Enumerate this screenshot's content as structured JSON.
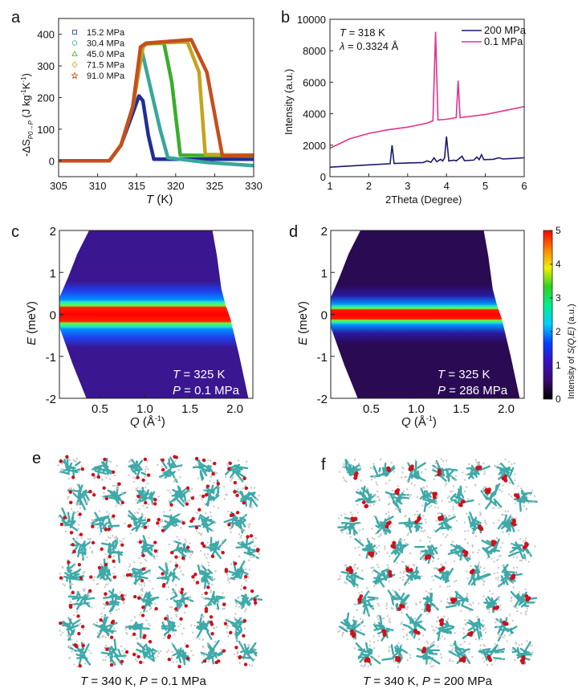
{
  "panel_labels": {
    "a": "a",
    "b": "b",
    "c": "c",
    "d": "d",
    "e": "e",
    "f": "f"
  },
  "chart_data": [
    {
      "id": "a",
      "type": "scatter",
      "xlabel_var": "T",
      "xlabel_unit": " (K)",
      "ylabel_parts": {
        "main": "-ΔS",
        "sub": "P0→P",
        "unit": " (J kg",
        "exp1": "-1",
        "mid": "K",
        "exp2": "-1",
        "end": ")"
      },
      "xlim": [
        305,
        330
      ],
      "ylim": [
        -50,
        450
      ],
      "xticks": [
        305,
        310,
        315,
        320,
        325,
        330
      ],
      "yticks": [
        0,
        100,
        200,
        300,
        400
      ],
      "legend_position": "top-left",
      "series": [
        {
          "name": "15.2 MPa",
          "marker": "square",
          "color": "#1f2f96",
          "points": [
            [
              305,
              0
            ],
            [
              311.5,
              0
            ],
            [
              313,
              50
            ],
            [
              314.5,
              150
            ],
            [
              315.3,
              205
            ],
            [
              315.8,
              190
            ],
            [
              316.5,
              80
            ],
            [
              317.2,
              5
            ],
            [
              330,
              5
            ]
          ]
        },
        {
          "name": "30.4 MPa",
          "marker": "circle",
          "color": "#38a79c",
          "points": [
            [
              305,
              0
            ],
            [
              311.5,
              0
            ],
            [
              313,
              50
            ],
            [
              314.5,
              170
            ],
            [
              315.7,
              345
            ],
            [
              316.5,
              260
            ],
            [
              318,
              100
            ],
            [
              319,
              10
            ],
            [
              324,
              -5
            ],
            [
              330,
              -15
            ]
          ]
        },
        {
          "name": "45.0 MPa",
          "marker": "triangle",
          "color": "#3aad2c",
          "points": [
            [
              305,
              0
            ],
            [
              311.5,
              0
            ],
            [
              313,
              50
            ],
            [
              314.5,
              170
            ],
            [
              315.8,
              360
            ],
            [
              316.3,
              370
            ],
            [
              318.5,
              372
            ],
            [
              319.5,
              250
            ],
            [
              320.6,
              18
            ],
            [
              330,
              15
            ]
          ]
        },
        {
          "name": "71.5 MPa",
          "marker": "diamond",
          "color": "#c4a41e",
          "points": [
            [
              305,
              0
            ],
            [
              311.5,
              0
            ],
            [
              313,
              50
            ],
            [
              314.5,
              170
            ],
            [
              315.8,
              360
            ],
            [
              316.3,
              372
            ],
            [
              321.5,
              376
            ],
            [
              323,
              280
            ],
            [
              323.8,
              20
            ],
            [
              330,
              18
            ]
          ]
        },
        {
          "name": "91.0 MPa",
          "marker": "star",
          "color": "#c64f1c",
          "points": [
            [
              305,
              0
            ],
            [
              311.5,
              0
            ],
            [
              313,
              50
            ],
            [
              314.5,
              170
            ],
            [
              315.5,
              360
            ],
            [
              316.2,
              372
            ],
            [
              322,
              383
            ],
            [
              324,
              280
            ],
            [
              326,
              15
            ],
            [
              330,
              18
            ]
          ]
        }
      ]
    },
    {
      "id": "b",
      "type": "line",
      "xlabel": "2Theta (Degree)",
      "ylabel": "Intensity (a.u.)",
      "xlim": [
        1,
        6
      ],
      "ylim": [
        0,
        10000
      ],
      "xticks": [
        1,
        2,
        3,
        4,
        5,
        6
      ],
      "yticks": [
        0,
        2000,
        4000,
        6000,
        8000,
        10000
      ],
      "annotation": {
        "t_var": "T",
        "t_val": " = 318 K",
        "l_var": "λ",
        "l_val": " = 0.3324 Å"
      },
      "legend_position": "top-right",
      "series": [
        {
          "name": "200 MPa",
          "color": "#1a1a6e",
          "points": [
            [
              1,
              600
            ],
            [
              2,
              750
            ],
            [
              2.55,
              820
            ],
            [
              2.6,
              2000
            ],
            [
              2.65,
              840
            ],
            [
              3.4,
              900
            ],
            [
              3.5,
              1000
            ],
            [
              3.6,
              920
            ],
            [
              3.68,
              1200
            ],
            [
              3.75,
              950
            ],
            [
              3.85,
              1100
            ],
            [
              3.9,
              1000
            ],
            [
              3.95,
              1200
            ],
            [
              4.0,
              2550
            ],
            [
              4.06,
              1000
            ],
            [
              4.2,
              1050
            ],
            [
              4.25,
              1000
            ],
            [
              4.4,
              1300
            ],
            [
              4.46,
              1020
            ],
            [
              4.7,
              1050
            ],
            [
              4.78,
              1250
            ],
            [
              4.84,
              1080
            ],
            [
              4.9,
              1400
            ],
            [
              4.96,
              1080
            ],
            [
              5.2,
              1100
            ],
            [
              5.35,
              1200
            ],
            [
              5.45,
              1120
            ],
            [
              6,
              1200
            ]
          ]
        },
        {
          "name": "0.1 MPa",
          "color": "#e0338a",
          "points": [
            [
              1,
              1800
            ],
            [
              1.5,
              2400
            ],
            [
              2,
              2750
            ],
            [
              2.5,
              2980
            ],
            [
              3,
              3150
            ],
            [
              3.5,
              3400
            ],
            [
              3.65,
              3550
            ],
            [
              3.72,
              9200
            ],
            [
              3.78,
              3600
            ],
            [
              4,
              3650
            ],
            [
              4.25,
              3750
            ],
            [
              4.3,
              6100
            ],
            [
              4.35,
              3750
            ],
            [
              5,
              3950
            ],
            [
              5.5,
              4200
            ],
            [
              6,
              4450
            ]
          ]
        }
      ]
    },
    {
      "id": "c",
      "type": "heatmap",
      "xlabel_var": "Q",
      "xlabel_unit": " (Å",
      "xlabel_exp": "-1",
      "xlabel_end": ")",
      "ylabel_var": "E",
      "ylabel_unit": " (meV)",
      "xlim": [
        0.05,
        2.2
      ],
      "ylim": [
        -2,
        2
      ],
      "xticks": [
        "0.5",
        "1.0",
        "1.5",
        "2.0"
      ],
      "yticks": [
        "-2",
        "-1",
        "0",
        "1",
        "2"
      ],
      "annotation": {
        "t_var": "T",
        "t_val": " = 325 K",
        "p_var": "P",
        "p_val": " = 0.1 MPa"
      },
      "band_halfwidth_meV": 0.3,
      "background_level": 0.7
    },
    {
      "id": "d",
      "type": "heatmap",
      "xlabel_var": "Q",
      "xlabel_unit": " (Å",
      "xlabel_exp": "-1",
      "xlabel_end": ")",
      "ylabel_var": "E",
      "ylabel_unit": " (meV)",
      "xlim": [
        0.05,
        2.2
      ],
      "ylim": [
        -2,
        2
      ],
      "xticks": [
        "0.5",
        "1.0",
        "1.5",
        "2.0"
      ],
      "yticks": [
        "-2",
        "-1",
        "0",
        "1",
        "2"
      ],
      "annotation": {
        "t_var": "T",
        "t_val": " = 325 K",
        "p_var": "P",
        "p_val": " = 286 MPa"
      },
      "band_halfwidth_meV": 0.2,
      "background_level": 0.4
    }
  ],
  "colorbar": {
    "label_pre": "Intensity of ",
    "label_var": "S(Q,E)",
    "label_post": " (a.u.)",
    "range": [
      0,
      5
    ],
    "ticks": [
      "0",
      "1",
      "2",
      "3",
      "4",
      "5"
    ],
    "colors": [
      "#000000",
      "#3a0a70",
      "#3a10c0",
      "#0040ff",
      "#00d0ff",
      "#00f090",
      "#30d020",
      "#f0f000",
      "#ff8000",
      "#ff0000"
    ]
  },
  "snapshots": {
    "e": {
      "cap_t": "T",
      "cap_t_val": " = 340 K, ",
      "cap_p": "P",
      "cap_p_val": " = 0.1 MPa"
    },
    "f": {
      "cap_t": "T",
      "cap_t_val": " = 340 K, ",
      "cap_p": "P",
      "cap_p_val": " = 200 MPa"
    },
    "colors": {
      "carbon": "#3fa9a9",
      "oxygen": "#d0101a",
      "hydrogen": "#c8c8c8"
    }
  }
}
